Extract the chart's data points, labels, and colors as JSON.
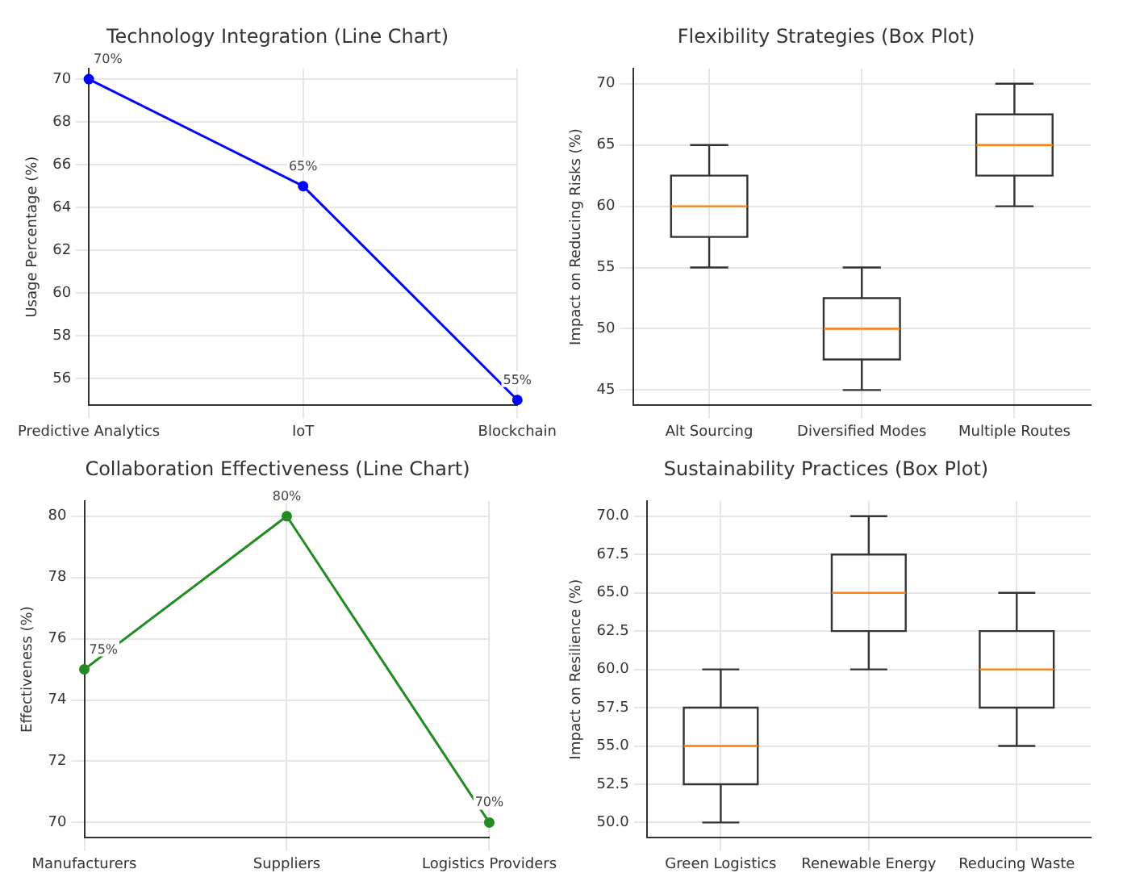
{
  "chart_data": [
    {
      "type": "line",
      "title": "Technology Integration (Line Chart)",
      "ylabel": "Usage Percentage (%)",
      "categories": [
        "Predictive Analytics",
        "IoT",
        "Blockchain"
      ],
      "series": [
        {
          "color": "#0000ff",
          "values": [
            70,
            65,
            55
          ],
          "value_labels": [
            "70%",
            "65%",
            "55%"
          ]
        }
      ],
      "ylim": [
        54.75,
        70.5
      ],
      "yticks": [
        56,
        58,
        60,
        62,
        64,
        66,
        68,
        70
      ],
      "grid": true,
      "marker": "circle"
    },
    {
      "type": "box",
      "title": "Flexibility Strategies (Box Plot)",
      "ylabel": "Impact on Reducing Risks (%)",
      "categories": [
        "Alt Sourcing",
        "Diversified Modes",
        "Multiple Routes"
      ],
      "series": [
        {
          "color": "#333333",
          "boxes": [
            {
              "low": 55,
              "q1": 57.5,
              "median": 60,
              "q3": 62.5,
              "high": 65
            },
            {
              "low": 45,
              "q1": 47.5,
              "median": 50,
              "q3": 52.5,
              "high": 55
            },
            {
              "low": 60,
              "q1": 62.5,
              "median": 65,
              "q3": 67.5,
              "high": 70
            }
          ]
        }
      ],
      "ylim": [
        43.75,
        71.25
      ],
      "yticks": [
        45,
        50,
        55,
        60,
        65,
        70
      ],
      "grid": true
    },
    {
      "type": "line",
      "title": "Collaboration Effectiveness (Line Chart)",
      "ylabel": "Effectiveness (%)",
      "categories": [
        "Manufacturers",
        "Suppliers",
        "Logistics Providers"
      ],
      "series": [
        {
          "color": "#228b22",
          "values": [
            75,
            80,
            70
          ],
          "value_labels": [
            "75%",
            "80%",
            "70%"
          ]
        }
      ],
      "ylim": [
        69.5,
        80.5
      ],
      "yticks": [
        70,
        72,
        74,
        76,
        78,
        80
      ],
      "grid": true,
      "marker": "circle"
    },
    {
      "type": "box",
      "title": "Sustainability Practices (Box Plot)",
      "ylabel": "Impact on Resilience (%)",
      "categories": [
        "Green Logistics",
        "Renewable Energy",
        "Reducing Waste"
      ],
      "series": [
        {
          "color": "#333333",
          "boxes": [
            {
              "low": 50,
              "q1": 52.5,
              "median": 55,
              "q3": 57.5,
              "high": 60
            },
            {
              "low": 60,
              "q1": 62.5,
              "median": 65,
              "q3": 67.5,
              "high": 70
            },
            {
              "low": 55,
              "q1": 57.5,
              "median": 60,
              "q3": 62.5,
              "high": 65
            }
          ]
        }
      ],
      "ylim": [
        49.0,
        71.0
      ],
      "yticks": [
        {
          "value": 50,
          "label": "50.0"
        },
        {
          "value": 52.5,
          "label": "52.5"
        },
        {
          "value": 55,
          "label": "55.0"
        },
        {
          "value": 57.5,
          "label": "57.5"
        },
        {
          "value": 60,
          "label": "60.0"
        },
        {
          "value": 62.5,
          "label": "62.5"
        },
        {
          "value": 65,
          "label": "65.0"
        },
        {
          "value": 67.5,
          "label": "67.5"
        },
        {
          "value": 70,
          "label": "70.0"
        }
      ],
      "grid": true
    }
  ]
}
